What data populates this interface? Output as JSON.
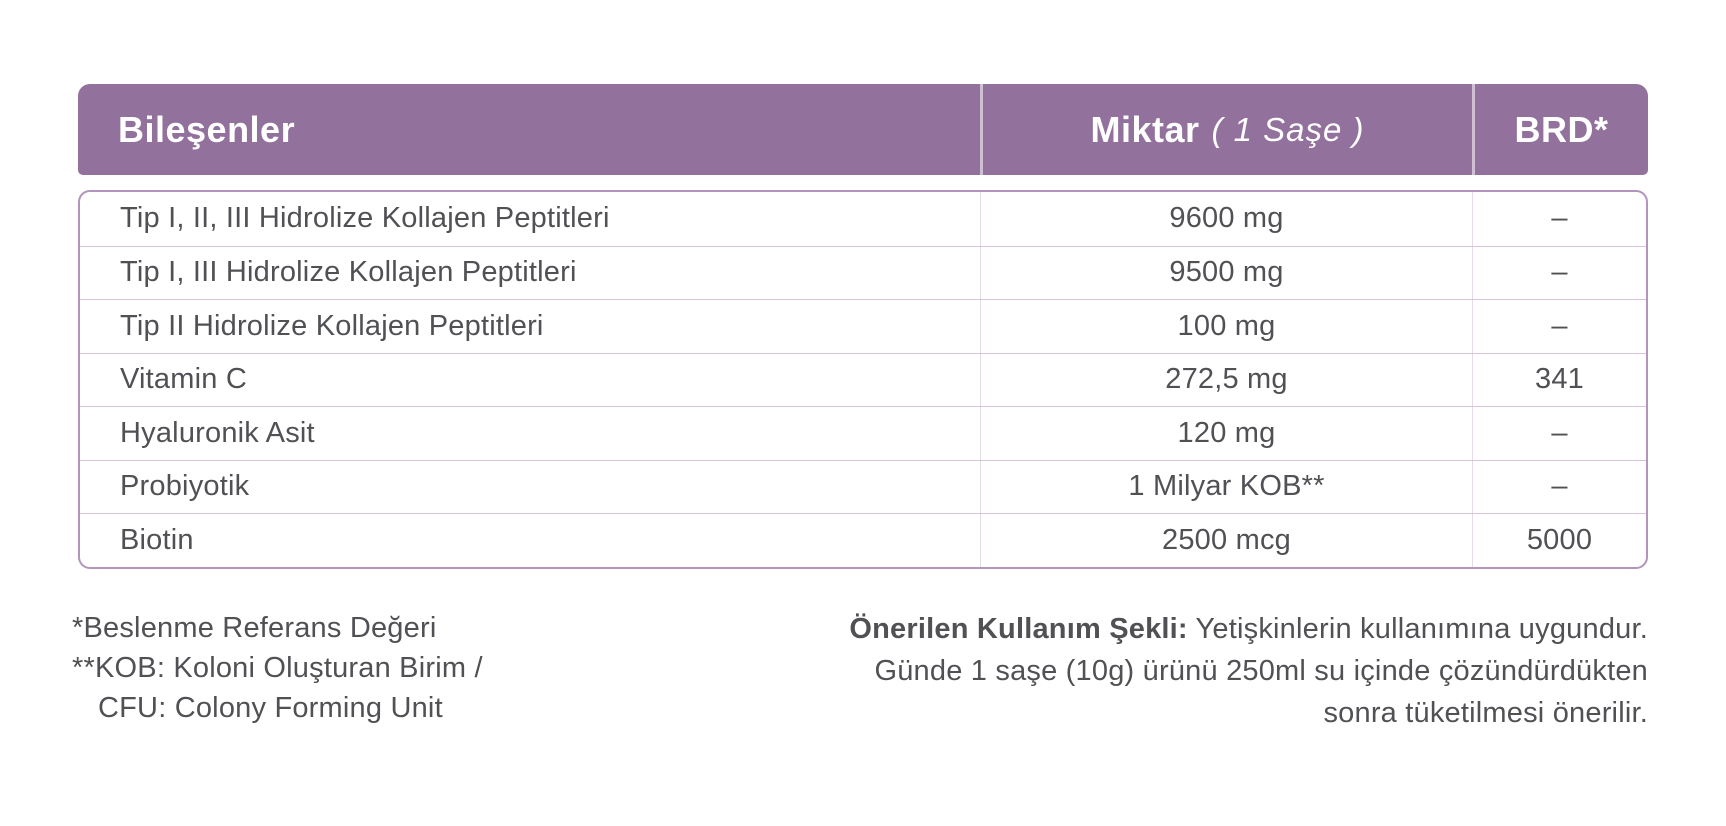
{
  "colors": {
    "header_bg": "#92719D",
    "header_text": "#FFFFFF",
    "body_text": "#515155",
    "outer_border": "#B294BC",
    "row_divider": "#D5C3DA",
    "col_divider": "#E4DBE7"
  },
  "table": {
    "header": {
      "ingredients": "Bileşenler",
      "amount_bold": "Miktar",
      "amount_italic": "( 1 Saşe )",
      "brd": "BRD*"
    },
    "rows": [
      {
        "name": "Tip I, II, III Hidrolize Kollajen Peptitleri",
        "amount": "9600 mg",
        "brd": "–"
      },
      {
        "name": "Tip I, III Hidrolize Kollajen Peptitleri",
        "amount": "9500 mg",
        "brd": "–"
      },
      {
        "name": "Tip II Hidrolize Kollajen Peptitleri",
        "amount": "100 mg",
        "brd": "–"
      },
      {
        "name": "Vitamin C",
        "amount": "272,5 mg",
        "brd": "341"
      },
      {
        "name": "Hyaluronik Asit",
        "amount": "120 mg",
        "brd": "–"
      },
      {
        "name": "Probiyotik",
        "amount": "1 Milyar KOB**",
        "brd": "–"
      },
      {
        "name": "Biotin",
        "amount": "2500 mcg",
        "brd": "5000"
      }
    ]
  },
  "footnotes": {
    "line1": "*Beslenme Referans Değeri",
    "line2": "**KOB: Koloni Oluşturan Birim /",
    "line3": "CFU: Colony Forming Unit"
  },
  "usage": {
    "title": "Önerilen Kullanım Şekli:",
    "line1_rest": "Yetişkinlerin kullanımına uygundur.",
    "line2": "Günde 1 saşe (10g) ürünü 250ml su içinde çözündürdükten",
    "line3": "sonra tüketilmesi önerilir."
  }
}
